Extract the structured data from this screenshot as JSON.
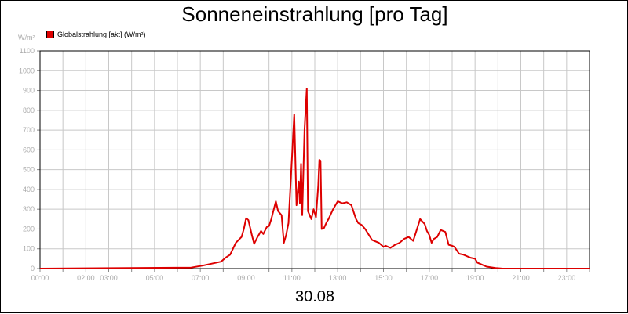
{
  "chart_data": {
    "type": "line",
    "title": "Sonneneinstrahlung [pro Tag]",
    "ylabel": "W/m²",
    "xlabel": "30.08",
    "ylim": [
      0,
      1100
    ],
    "xlim_hours": [
      0,
      24
    ],
    "y_ticks": [
      0,
      100,
      200,
      300,
      400,
      500,
      600,
      700,
      800,
      900,
      1000,
      1100
    ],
    "x_ticks": [
      {
        "h": 0,
        "label": "00:00"
      },
      {
        "h": 2,
        "label": "02:00"
      },
      {
        "h": 3,
        "label": "03:00"
      },
      {
        "h": 5,
        "label": "05:00"
      },
      {
        "h": 7,
        "label": "07:00"
      },
      {
        "h": 9,
        "label": "09:00"
      },
      {
        "h": 11,
        "label": "11:00"
      },
      {
        "h": 13,
        "label": "13:00"
      },
      {
        "h": 15,
        "label": "15:00"
      },
      {
        "h": 17,
        "label": "17:00"
      },
      {
        "h": 19,
        "label": "19:00"
      },
      {
        "h": 21,
        "label": "21:00"
      },
      {
        "h": 23,
        "label": "23:00"
      }
    ],
    "grid": true,
    "legend": "top-left",
    "series": [
      {
        "name": "Globalstrahlung [akt] (W/m²)",
        "color": "#dd0000",
        "x": [
          0,
          6.6,
          7.1,
          7.5,
          7.9,
          8.1,
          8.3,
          8.55,
          8.8,
          8.9,
          9.0,
          9.1,
          9.25,
          9.35,
          9.5,
          9.65,
          9.75,
          9.9,
          10.0,
          10.1,
          10.3,
          10.4,
          10.55,
          10.65,
          10.75,
          10.85,
          11.0,
          11.1,
          11.2,
          11.3,
          11.35,
          11.4,
          11.45,
          11.55,
          11.65,
          11.7,
          11.85,
          11.95,
          12.05,
          12.15,
          12.2,
          12.25,
          12.3,
          12.4,
          12.5,
          12.55,
          12.6,
          12.7,
          12.8,
          13.0,
          13.2,
          13.4,
          13.6,
          13.8,
          13.9,
          14.05,
          14.2,
          14.5,
          14.8,
          15.0,
          15.1,
          15.3,
          15.5,
          15.7,
          15.9,
          16.1,
          16.3,
          16.6,
          16.8,
          16.9,
          17.0,
          17.1,
          17.2,
          17.35,
          17.5,
          17.7,
          17.85,
          18.0,
          18.1,
          18.3,
          18.5,
          18.6,
          18.8,
          19.0,
          19.1,
          19.3,
          19.5,
          19.9,
          20.2,
          20.6,
          24.0
        ],
        "values": [
          0,
          5,
          15,
          25,
          35,
          55,
          70,
          130,
          160,
          200,
          255,
          245,
          170,
          125,
          160,
          190,
          175,
          210,
          215,
          250,
          340,
          290,
          270,
          130,
          170,
          230,
          550,
          780,
          320,
          440,
          330,
          530,
          270,
          700,
          910,
          290,
          250,
          300,
          260,
          420,
          550,
          545,
          200,
          205,
          230,
          240,
          250,
          275,
          300,
          340,
          330,
          335,
          320,
          250,
          230,
          220,
          200,
          145,
          130,
          110,
          115,
          105,
          120,
          130,
          150,
          160,
          140,
          250,
          225,
          190,
          170,
          130,
          150,
          160,
          195,
          185,
          120,
          115,
          110,
          75,
          70,
          65,
          55,
          50,
          30,
          20,
          10,
          3,
          0,
          0,
          0
        ]
      }
    ]
  }
}
